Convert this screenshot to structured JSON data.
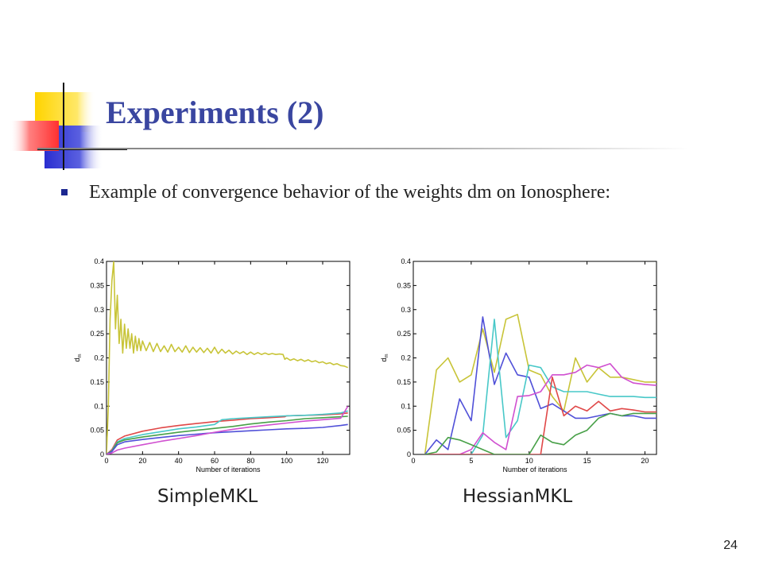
{
  "slide": {
    "title": "Experiments (2)",
    "bullet": "Example of convergence behavior of the weights dm on Ionosphere:",
    "page_number": "24",
    "colors": {
      "title": "#3a46a0",
      "bullet": "#1b2790",
      "deco_yellow": "#ffd400",
      "deco_blue": "#2a2ed0",
      "deco_red": "#ff5050"
    }
  },
  "chart_data": [
    {
      "type": "line",
      "label": "SimpleMKL",
      "xlabel": "Number of iterations",
      "ylabel": "d_m",
      "xlim": [
        0,
        135
      ],
      "ylim": [
        0,
        0.4
      ],
      "xticks": [
        "0",
        "20",
        "40",
        "60",
        "80",
        "100",
        "120"
      ],
      "yticks": [
        "0",
        "0.05",
        "0.1",
        "0.15",
        "0.2",
        "0.25",
        "0.3",
        "0.35",
        "0.4"
      ],
      "series": [
        {
          "color": "#c8c438",
          "x": [
            0,
            1,
            2,
            3,
            4,
            5,
            6,
            7,
            8,
            9,
            10,
            11,
            12,
            13,
            14,
            15,
            16,
            17,
            18,
            19,
            20,
            22,
            24,
            26,
            28,
            30,
            32,
            34,
            36,
            38,
            40,
            42,
            44,
            46,
            48,
            50,
            52,
            54,
            56,
            58,
            60,
            62,
            64,
            66,
            68,
            70,
            72,
            74,
            76,
            78,
            80,
            82,
            84,
            86,
            88,
            90,
            92,
            94,
            96,
            98,
            99,
            100,
            102,
            104,
            106,
            108,
            110,
            112,
            114,
            116,
            118,
            120,
            122,
            124,
            126,
            128,
            130,
            132,
            134
          ],
          "y": [
            0,
            0.1,
            0.28,
            0.36,
            0.4,
            0.26,
            0.33,
            0.23,
            0.28,
            0.21,
            0.27,
            0.22,
            0.26,
            0.22,
            0.25,
            0.21,
            0.245,
            0.215,
            0.24,
            0.215,
            0.235,
            0.215,
            0.232,
            0.213,
            0.23,
            0.213,
            0.225,
            0.212,
            0.228,
            0.213,
            0.222,
            0.212,
            0.225,
            0.211,
            0.222,
            0.212,
            0.221,
            0.211,
            0.22,
            0.21,
            0.222,
            0.209,
            0.218,
            0.21,
            0.216,
            0.208,
            0.214,
            0.209,
            0.213,
            0.207,
            0.212,
            0.207,
            0.211,
            0.207,
            0.21,
            0.207,
            0.209,
            0.207,
            0.208,
            0.207,
            0.197,
            0.2,
            0.195,
            0.198,
            0.194,
            0.197,
            0.193,
            0.196,
            0.192,
            0.194,
            0.19,
            0.192,
            0.188,
            0.19,
            0.186,
            0.188,
            0.184,
            0.183,
            0.18
          ]
        },
        {
          "color": "#e04848",
          "x": [
            0,
            3,
            6,
            10,
            20,
            30,
            40,
            50,
            60,
            70,
            80,
            90,
            99,
            100,
            110,
            120,
            130,
            134
          ],
          "y": [
            0,
            0.01,
            0.03,
            0.038,
            0.048,
            0.055,
            0.06,
            0.064,
            0.068,
            0.071,
            0.074,
            0.076,
            0.078,
            0.08,
            0.081,
            0.082,
            0.084,
            0.086
          ]
        },
        {
          "color": "#48c8c8",
          "x": [
            0,
            3,
            6,
            10,
            20,
            30,
            40,
            50,
            60,
            64,
            70,
            80,
            90,
            100,
            110,
            120,
            130,
            134
          ],
          "y": [
            0,
            0.008,
            0.026,
            0.033,
            0.041,
            0.047,
            0.053,
            0.057,
            0.062,
            0.072,
            0.074,
            0.076,
            0.078,
            0.08,
            0.081,
            0.083,
            0.086,
            0.09
          ]
        },
        {
          "color": "#48a048",
          "x": [
            0,
            3,
            6,
            10,
            20,
            30,
            40,
            50,
            60,
            70,
            80,
            90,
            100,
            110,
            120,
            130,
            134
          ],
          "y": [
            0,
            0.007,
            0.024,
            0.03,
            0.036,
            0.041,
            0.046,
            0.05,
            0.054,
            0.058,
            0.063,
            0.067,
            0.07,
            0.074,
            0.076,
            0.078,
            0.079
          ]
        },
        {
          "color": "#5050d8",
          "x": [
            0,
            3,
            6,
            10,
            20,
            30,
            40,
            50,
            60,
            70,
            80,
            90,
            100,
            110,
            120,
            130,
            134
          ],
          "y": [
            0,
            0.006,
            0.02,
            0.026,
            0.031,
            0.035,
            0.039,
            0.042,
            0.045,
            0.047,
            0.049,
            0.051,
            0.053,
            0.054,
            0.056,
            0.06,
            0.062
          ]
        },
        {
          "color": "#d050d0",
          "x": [
            0,
            3,
            6,
            10,
            20,
            30,
            40,
            50,
            60,
            70,
            80,
            90,
            100,
            110,
            120,
            130,
            134
          ],
          "y": [
            0,
            0.003,
            0.009,
            0.013,
            0.02,
            0.027,
            0.033,
            0.039,
            0.046,
            0.052,
            0.057,
            0.061,
            0.065,
            0.069,
            0.072,
            0.075,
            0.1
          ]
        }
      ]
    },
    {
      "type": "line",
      "label": "HessianMKL",
      "xlabel": "Number of iterations",
      "ylabel": "d_m",
      "xlim": [
        0,
        21
      ],
      "ylim": [
        0,
        0.4
      ],
      "xticks": [
        "0",
        "5",
        "10",
        "15",
        "20"
      ],
      "yticks": [
        "0",
        "0.05",
        "0.1",
        "0.15",
        "0.2",
        "0.25",
        "0.3",
        "0.35",
        "0.4"
      ],
      "series": [
        {
          "color": "#c8c438",
          "x": [
            1,
            2,
            3,
            4,
            5,
            6,
            7,
            8,
            9,
            10,
            11,
            12,
            13,
            14,
            15,
            16,
            17,
            18,
            19,
            20,
            21
          ],
          "y": [
            0,
            0.175,
            0.2,
            0.15,
            0.165,
            0.26,
            0.17,
            0.28,
            0.29,
            0.175,
            0.165,
            0.12,
            0.09,
            0.2,
            0.15,
            0.18,
            0.16,
            0.16,
            0.155,
            0.15,
            0.15
          ]
        },
        {
          "color": "#5050d8",
          "x": [
            1,
            2,
            3,
            4,
            5,
            6,
            7,
            8,
            9,
            10,
            11,
            12,
            13,
            14,
            15,
            16,
            17,
            18,
            19,
            20,
            21
          ],
          "y": [
            0,
            0.03,
            0.01,
            0.115,
            0.07,
            0.285,
            0.145,
            0.21,
            0.165,
            0.16,
            0.095,
            0.105,
            0.09,
            0.075,
            0.075,
            0.08,
            0.085,
            0.08,
            0.08,
            0.075,
            0.075
          ]
        },
        {
          "color": "#48c8c8",
          "x": [
            1,
            2,
            3,
            4,
            5,
            6,
            7,
            8,
            9,
            10,
            11,
            12,
            13,
            14,
            15,
            16,
            17,
            18,
            19,
            20,
            21
          ],
          "y": [
            0,
            0,
            0,
            0,
            0,
            0.04,
            0.28,
            0.035,
            0.07,
            0.185,
            0.18,
            0.14,
            0.13,
            0.13,
            0.13,
            0.125,
            0.12,
            0.12,
            0.12,
            0.118,
            0.118
          ]
        },
        {
          "color": "#d050d0",
          "x": [
            1,
            2,
            3,
            4,
            5,
            6,
            7,
            8,
            9,
            10,
            11,
            12,
            13,
            14,
            15,
            16,
            17,
            18,
            19,
            20,
            21
          ],
          "y": [
            0,
            0,
            0,
            0,
            0.01,
            0.045,
            0.025,
            0.01,
            0.12,
            0.122,
            0.13,
            0.165,
            0.165,
            0.17,
            0.185,
            0.18,
            0.188,
            0.16,
            0.148,
            0.145,
            0.143
          ]
        },
        {
          "color": "#e04848",
          "x": [
            1,
            2,
            3,
            4,
            5,
            6,
            7,
            8,
            9,
            10,
            11,
            12,
            13,
            14,
            15,
            16,
            17,
            18,
            19,
            20,
            21
          ],
          "y": [
            0,
            0,
            0,
            0,
            0,
            0,
            0,
            0,
            0,
            0,
            0,
            0.16,
            0.08,
            0.1,
            0.09,
            0.11,
            0.09,
            0.095,
            0.092,
            0.088,
            0.088
          ]
        },
        {
          "color": "#48a048",
          "x": [
            1,
            2,
            3,
            4,
            5,
            6,
            7,
            8,
            9,
            10,
            11,
            12,
            13,
            14,
            15,
            16,
            17,
            18,
            19,
            20,
            21
          ],
          "y": [
            0,
            0.005,
            0.035,
            0.03,
            0.02,
            0.01,
            0,
            0,
            0,
            0,
            0.04,
            0.025,
            0.02,
            0.04,
            0.05,
            0.075,
            0.085,
            0.08,
            0.085,
            0.085,
            0.085
          ]
        }
      ]
    }
  ]
}
